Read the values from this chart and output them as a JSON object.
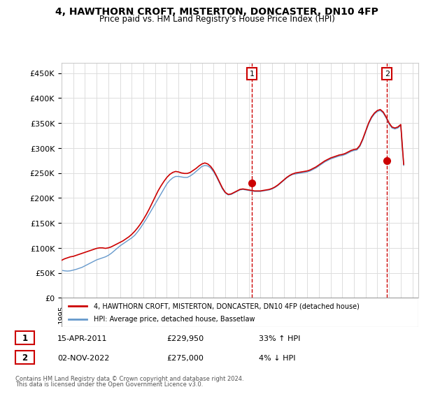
{
  "title": "4, HAWTHORN CROFT, MISTERTON, DONCASTER, DN10 4FP",
  "subtitle": "Price paid vs. HM Land Registry's House Price Index (HPI)",
  "ylabel_ticks": [
    "£0",
    "£50K",
    "£100K",
    "£150K",
    "£200K",
    "£250K",
    "£300K",
    "£350K",
    "£400K",
    "£450K"
  ],
  "ytick_values": [
    0,
    50000,
    100000,
    150000,
    200000,
    250000,
    300000,
    350000,
    400000,
    450000
  ],
  "ylim": [
    0,
    470000
  ],
  "xlim_start": 1995.0,
  "xlim_end": 2025.5,
  "red_line_color": "#cc0000",
  "blue_line_color": "#6699cc",
  "marker_color_1": "#cc0000",
  "marker_color_2": "#cc0000",
  "dashed_line_color": "#cc0000",
  "transaction_1": {
    "date": "15-APR-2011",
    "price": 229950,
    "pct": "33%",
    "dir": "↑",
    "year": 2011.28
  },
  "transaction_2": {
    "date": "02-NOV-2022",
    "price": 275000,
    "pct": "4%",
    "dir": "↓",
    "year": 2022.83
  },
  "legend_red_label": "4, HAWTHORN CROFT, MISTERTON, DONCASTER, DN10 4FP (detached house)",
  "legend_blue_label": "HPI: Average price, detached house, Bassetlaw",
  "footer_line1": "Contains HM Land Registry data © Crown copyright and database right 2024.",
  "footer_line2": "This data is licensed under the Open Government Licence v3.0.",
  "background_color": "#ffffff",
  "grid_color": "#dddddd",
  "hpi_years": [
    1995.0,
    1995.25,
    1995.5,
    1995.75,
    1996.0,
    1996.25,
    1996.5,
    1996.75,
    1997.0,
    1997.25,
    1997.5,
    1997.75,
    1998.0,
    1998.25,
    1998.5,
    1998.75,
    1999.0,
    1999.25,
    1999.5,
    1999.75,
    2000.0,
    2000.25,
    2000.5,
    2000.75,
    2001.0,
    2001.25,
    2001.5,
    2001.75,
    2002.0,
    2002.25,
    2002.5,
    2002.75,
    2003.0,
    2003.25,
    2003.5,
    2003.75,
    2004.0,
    2004.25,
    2004.5,
    2004.75,
    2005.0,
    2005.25,
    2005.5,
    2005.75,
    2006.0,
    2006.25,
    2006.5,
    2006.75,
    2007.0,
    2007.25,
    2007.5,
    2007.75,
    2008.0,
    2008.25,
    2008.5,
    2008.75,
    2009.0,
    2009.25,
    2009.5,
    2009.75,
    2010.0,
    2010.25,
    2010.5,
    2010.75,
    2011.0,
    2011.25,
    2011.5,
    2011.75,
    2012.0,
    2012.25,
    2012.5,
    2012.75,
    2013.0,
    2013.25,
    2013.5,
    2013.75,
    2014.0,
    2014.25,
    2014.5,
    2014.75,
    2015.0,
    2015.25,
    2015.5,
    2015.75,
    2016.0,
    2016.25,
    2016.5,
    2016.75,
    2017.0,
    2017.25,
    2017.5,
    2017.75,
    2018.0,
    2018.25,
    2018.5,
    2018.75,
    2019.0,
    2019.25,
    2019.5,
    2019.75,
    2020.0,
    2020.25,
    2020.5,
    2020.75,
    2021.0,
    2021.25,
    2021.5,
    2021.75,
    2022.0,
    2022.25,
    2022.5,
    2022.75,
    2023.0,
    2023.25,
    2023.5,
    2023.75,
    2024.0,
    2024.25
  ],
  "hpi_values": [
    55000,
    54000,
    53500,
    54000,
    55500,
    57000,
    59000,
    61000,
    64000,
    67000,
    70000,
    73000,
    76000,
    78000,
    80000,
    82000,
    85000,
    89000,
    94000,
    99000,
    104000,
    108000,
    112000,
    116000,
    120000,
    125000,
    132000,
    140000,
    149000,
    158000,
    168000,
    178000,
    188000,
    198000,
    208000,
    218000,
    228000,
    235000,
    240000,
    243000,
    243000,
    242000,
    241000,
    241000,
    244000,
    248000,
    253000,
    258000,
    263000,
    265000,
    264000,
    260000,
    252000,
    242000,
    230000,
    218000,
    210000,
    206000,
    207000,
    210000,
    213000,
    216000,
    217000,
    216000,
    215000,
    214000,
    213000,
    213000,
    213000,
    214000,
    215000,
    216000,
    218000,
    221000,
    225000,
    230000,
    235000,
    240000,
    244000,
    247000,
    248000,
    249000,
    250000,
    251000,
    252000,
    254000,
    257000,
    260000,
    264000,
    268000,
    272000,
    275000,
    278000,
    280000,
    282000,
    284000,
    285000,
    287000,
    290000,
    293000,
    295000,
    296000,
    303000,
    316000,
    332000,
    348000,
    360000,
    368000,
    373000,
    375000,
    370000,
    360000,
    348000,
    340000,
    338000,
    340000,
    345000,
    265000
  ],
  "red_years": [
    1995.0,
    1995.25,
    1995.5,
    1995.75,
    1996.0,
    1996.25,
    1996.5,
    1996.75,
    1997.0,
    1997.25,
    1997.5,
    1997.75,
    1998.0,
    1998.25,
    1998.5,
    1998.75,
    1999.0,
    1999.25,
    1999.5,
    1999.75,
    2000.0,
    2000.25,
    2000.5,
    2000.75,
    2001.0,
    2001.25,
    2001.5,
    2001.75,
    2002.0,
    2002.25,
    2002.5,
    2002.75,
    2003.0,
    2003.25,
    2003.5,
    2003.75,
    2004.0,
    2004.25,
    2004.5,
    2004.75,
    2005.0,
    2005.25,
    2005.5,
    2005.75,
    2006.0,
    2006.25,
    2006.5,
    2006.75,
    2007.0,
    2007.25,
    2007.5,
    2007.75,
    2008.0,
    2008.25,
    2008.5,
    2008.75,
    2009.0,
    2009.25,
    2009.5,
    2009.75,
    2010.0,
    2010.25,
    2010.5,
    2010.75,
    2011.0,
    2011.25,
    2011.5,
    2011.75,
    2012.0,
    2012.25,
    2012.5,
    2012.75,
    2013.0,
    2013.25,
    2013.5,
    2013.75,
    2014.0,
    2014.25,
    2014.5,
    2014.75,
    2015.0,
    2015.25,
    2015.5,
    2015.75,
    2016.0,
    2016.25,
    2016.5,
    2016.75,
    2017.0,
    2017.25,
    2017.5,
    2017.75,
    2018.0,
    2018.25,
    2018.5,
    2018.75,
    2019.0,
    2019.25,
    2019.5,
    2019.75,
    2020.0,
    2020.25,
    2020.5,
    2020.75,
    2021.0,
    2021.25,
    2021.5,
    2021.75,
    2022.0,
    2022.25,
    2022.5,
    2022.75,
    2023.0,
    2023.25,
    2023.5,
    2023.75,
    2024.0,
    2024.25
  ],
  "red_values": [
    75000,
    78000,
    80000,
    82000,
    83000,
    85000,
    87000,
    89000,
    91000,
    93000,
    95000,
    97000,
    99000,
    100000,
    100000,
    99000,
    100000,
    102000,
    105000,
    108000,
    111000,
    114000,
    118000,
    122000,
    127000,
    133000,
    140000,
    148000,
    157000,
    167000,
    178000,
    190000,
    202000,
    214000,
    224000,
    233000,
    241000,
    247000,
    251000,
    253000,
    252000,
    250000,
    249000,
    249000,
    251000,
    255000,
    259000,
    264000,
    268000,
    270000,
    268000,
    263000,
    255000,
    244000,
    232000,
    220000,
    211000,
    207000,
    208000,
    211000,
    214000,
    217000,
    218000,
    217000,
    216000,
    215000,
    214000,
    214000,
    214000,
    215000,
    216000,
    217000,
    219000,
    222000,
    226000,
    231000,
    236000,
    241000,
    245000,
    248000,
    250000,
    251000,
    252000,
    253000,
    254000,
    256000,
    259000,
    262000,
    266000,
    270000,
    274000,
    277000,
    280000,
    282000,
    284000,
    286000,
    287000,
    289000,
    292000,
    295000,
    297000,
    298000,
    305000,
    318000,
    334000,
    350000,
    362000,
    370000,
    375000,
    377000,
    372000,
    362000,
    350000,
    342000,
    340000,
    342000,
    347000,
    267000
  ]
}
